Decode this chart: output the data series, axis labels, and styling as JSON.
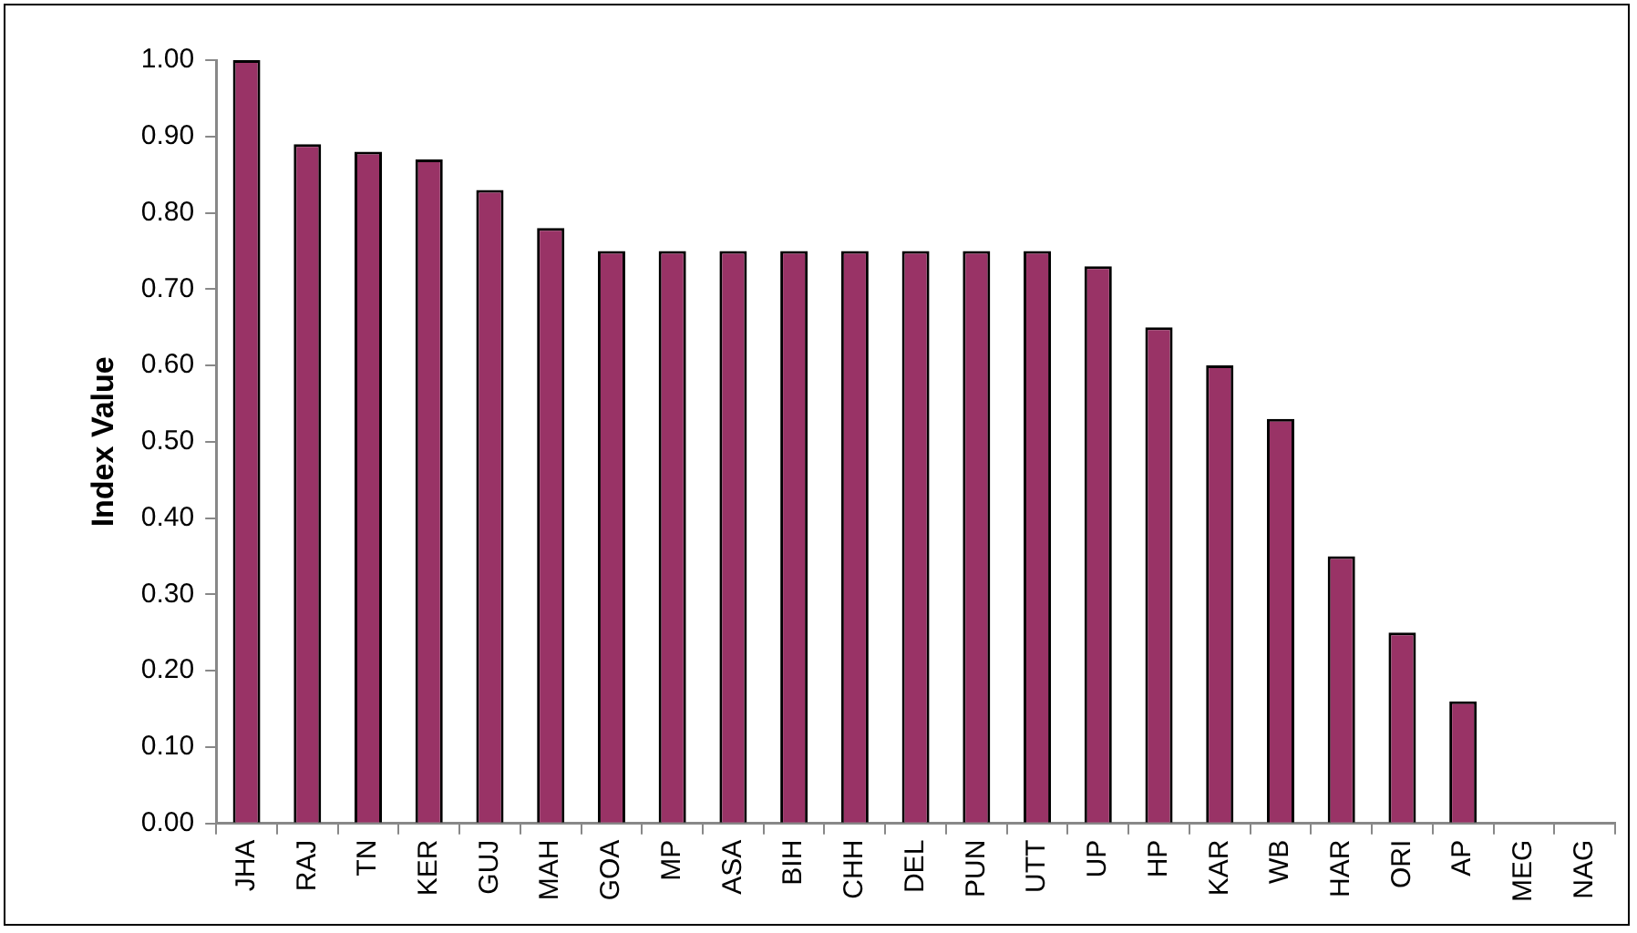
{
  "chart_data": {
    "type": "bar",
    "ylabel": "Index Value",
    "categories": [
      "JHA",
      "RAJ",
      "TN",
      "KER",
      "GUJ",
      "MAH",
      "GOA",
      "MP",
      "ASA",
      "BIH",
      "CHH",
      "DEL",
      "PUN",
      "UTT",
      "UP",
      "HP",
      "KAR",
      "WB",
      "HAR",
      "ORI",
      "AP",
      "MEG",
      "NAG"
    ],
    "values": [
      1.0,
      0.89,
      0.88,
      0.87,
      0.83,
      0.78,
      0.75,
      0.75,
      0.75,
      0.75,
      0.75,
      0.75,
      0.75,
      0.75,
      0.73,
      0.65,
      0.6,
      0.53,
      0.35,
      0.25,
      0.16,
      0,
      0
    ],
    "color": "#993366",
    "ylim": [
      0,
      1
    ],
    "yticks": [
      {
        "value": 0,
        "label": "0.00"
      },
      {
        "value": 0.1,
        "label": "0.10"
      },
      {
        "value": 0.2,
        "label": "0.20"
      },
      {
        "value": 0.3,
        "label": "0.30"
      },
      {
        "value": 0.4,
        "label": "0.40"
      },
      {
        "value": 0.5,
        "label": "0.50"
      },
      {
        "value": 0.6,
        "label": "0.60"
      },
      {
        "value": 0.7,
        "label": "0.70"
      },
      {
        "value": 0.8,
        "label": "0.80"
      },
      {
        "value": 0.9,
        "label": "0.90"
      },
      {
        "value": 1,
        "label": "1.00"
      }
    ],
    "grid": false,
    "legend": false
  }
}
